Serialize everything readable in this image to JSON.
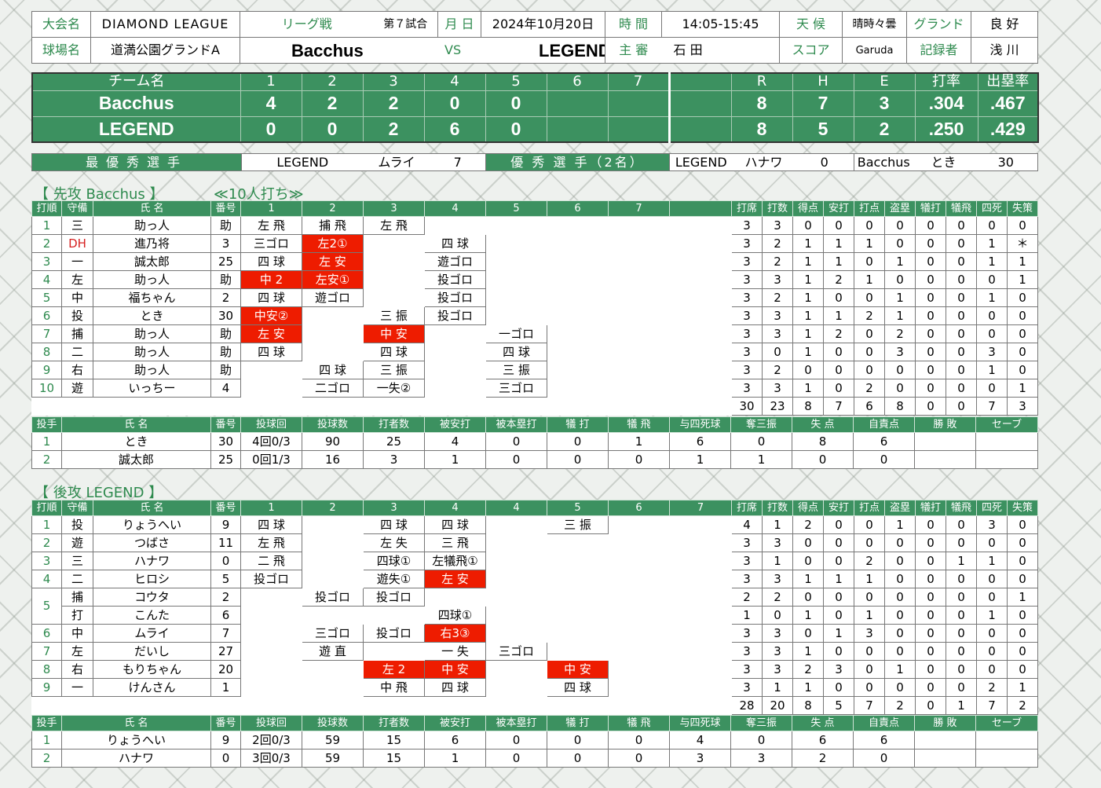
{
  "header": {
    "labels": {
      "tournament": "大会名",
      "league": "リーグ戦",
      "date": "月 日",
      "time": "時 間",
      "weather": "天 候",
      "ground": "グランド",
      "venue": "球場名",
      "vs": "VS",
      "umpire": "主 審",
      "score": "スコア",
      "recorder": "記録者"
    },
    "tournament": "DIAMOND LEAGUE",
    "game_no": "第７試合",
    "date": "2024年10月20日",
    "time": "14:05-15:45",
    "weather": "晴時々曇",
    "ground": "良 好",
    "venue": "道満公園グランドA",
    "home_team": "Bacchus",
    "away_team": "LEGEND",
    "umpire": "石 田",
    "score_keeper": "Garuda",
    "recorder": "浅 川"
  },
  "scoreboard": {
    "headers": [
      "チーム名",
      "1",
      "2",
      "3",
      "4",
      "5",
      "6",
      "7",
      "",
      "R",
      "H",
      "E",
      "打率",
      "出塁率"
    ],
    "rows": [
      [
        "Bacchus",
        "4",
        "2",
        "2",
        "0",
        "0",
        "",
        "",
        "",
        "8",
        "7",
        "3",
        ".304",
        ".467"
      ],
      [
        "LEGEND",
        "0",
        "0",
        "2",
        "6",
        "0",
        "",
        "",
        "",
        "8",
        "5",
        "2",
        ".250",
        ".429"
      ]
    ]
  },
  "mvp": {
    "label": "最優秀選手",
    "team": "LEGEND",
    "name": "ムライ",
    "no": "7",
    "label2": "優 秀 選 手（2名）",
    "p1_team": "LEGEND",
    "p1_name": "ハナワ",
    "p1_no": "0",
    "p2_team": "Bacchus",
    "p2_name": "とき",
    "p2_no": "30"
  },
  "first": {
    "title": "【 先攻 Bacchus 】",
    "note": "≪10人打ち≫",
    "headers": [
      "打順",
      "守備",
      "氏 名",
      "番号",
      "1",
      "2",
      "3",
      "4",
      "5",
      "6",
      "7",
      "",
      "打席",
      "打数",
      "得点",
      "安打",
      "打点",
      "盗塁",
      "犠打",
      "犠飛",
      "四死",
      "失策"
    ],
    "rows": [
      {
        "order": "1",
        "pos": "三",
        "name": "助っ人",
        "no": "助",
        "inn": [
          "左 飛",
          "捕 飛",
          "左 飛",
          "",
          "",
          "",
          ""
        ],
        "st": [
          "3",
          "3",
          "0",
          "0",
          "0",
          "0",
          "0",
          "0",
          "0",
          "0"
        ]
      },
      {
        "order": "2",
        "pos": "DH",
        "name": "進乃将",
        "no": "3",
        "inn": [
          "三ゴロ",
          "左2①",
          "",
          "四 球",
          "",
          "",
          ""
        ],
        "st": [
          "3",
          "2",
          "1",
          "1",
          "1",
          "0",
          "0",
          "0",
          "1",
          "＊"
        ]
      },
      {
        "order": "3",
        "pos": "一",
        "name": "誠太郎",
        "no": "25",
        "inn": [
          "四 球",
          "左 安",
          "",
          "遊ゴロ",
          "",
          "",
          ""
        ],
        "st": [
          "3",
          "2",
          "1",
          "1",
          "0",
          "1",
          "0",
          "0",
          "1",
          "1"
        ]
      },
      {
        "order": "4",
        "pos": "左",
        "name": "助っ人",
        "no": "助",
        "inn": [
          "中 2",
          "左安①",
          "",
          "投ゴロ",
          "",
          "",
          ""
        ],
        "st": [
          "3",
          "3",
          "1",
          "2",
          "1",
          "0",
          "0",
          "0",
          "0",
          "1"
        ]
      },
      {
        "order": "5",
        "pos": "中",
        "name": "福ちゃん",
        "no": "2",
        "inn": [
          "四 球",
          "遊ゴロ",
          "",
          "投ゴロ",
          "",
          "",
          ""
        ],
        "st": [
          "3",
          "2",
          "1",
          "0",
          "0",
          "1",
          "0",
          "0",
          "1",
          "0"
        ]
      },
      {
        "order": "6",
        "pos": "投",
        "name": "とき",
        "no": "30",
        "inn": [
          "中安②",
          "",
          "三 振",
          "投ゴロ",
          "",
          "",
          ""
        ],
        "st": [
          "3",
          "3",
          "1",
          "1",
          "2",
          "1",
          "0",
          "0",
          "0",
          "0"
        ]
      },
      {
        "order": "7",
        "pos": "捕",
        "name": "助っ人",
        "no": "助",
        "inn": [
          "左 安",
          "",
          "中 安",
          "",
          "一ゴロ",
          "",
          ""
        ],
        "st": [
          "3",
          "3",
          "1",
          "2",
          "0",
          "2",
          "0",
          "0",
          "0",
          "0"
        ]
      },
      {
        "order": "8",
        "pos": "二",
        "name": "助っ人",
        "no": "助",
        "inn": [
          "四 球",
          "",
          "四 球",
          "",
          "四 球",
          "",
          ""
        ],
        "st": [
          "3",
          "0",
          "1",
          "0",
          "0",
          "3",
          "0",
          "0",
          "3",
          "0"
        ]
      },
      {
        "order": "9",
        "pos": "右",
        "name": "助っ人",
        "no": "助",
        "inn": [
          "",
          "四 球",
          "三 振",
          "",
          "三 振",
          "",
          ""
        ],
        "st": [
          "3",
          "2",
          "0",
          "0",
          "0",
          "0",
          "0",
          "0",
          "1",
          "0"
        ]
      },
      {
        "order": "10",
        "pos": "遊",
        "name": "いっちー",
        "no": "4",
        "inn": [
          "",
          "二ゴロ",
          "一失②",
          "",
          "三ゴロ",
          "",
          ""
        ],
        "st": [
          "3",
          "3",
          "1",
          "0",
          "2",
          "0",
          "0",
          "0",
          "0",
          "1"
        ]
      }
    ],
    "totals": [
      "30",
      "23",
      "8",
      "7",
      "6",
      "8",
      "0",
      "0",
      "7",
      "3"
    ],
    "pitch_headers": [
      "投手",
      "氏 名",
      "番号",
      "投球回",
      "投球数",
      "打者数",
      "被安打",
      "被本塁打",
      "犠 打",
      "犠 飛",
      "与四死球",
      "奪三振",
      "失 点",
      "自責点",
      "勝 敗",
      "セーブ"
    ],
    "pitchers": [
      [
        "1",
        "とき",
        "30",
        "4回0/3",
        "90",
        "25",
        "4",
        "0",
        "0",
        "1",
        "6",
        "0",
        "8",
        "6",
        "",
        ""
      ],
      [
        "2",
        "誠太郎",
        "25",
        "0回1/3",
        "16",
        "3",
        "1",
        "0",
        "0",
        "0",
        "1",
        "1",
        "0",
        "0",
        "",
        ""
      ]
    ]
  },
  "second": {
    "title": "【 後攻 LEGEND 】",
    "headers": [
      "打順",
      "守備",
      "氏 名",
      "番号",
      "1",
      "2",
      "3",
      "4",
      "4",
      "5",
      "6",
      "7",
      "打席",
      "打数",
      "得点",
      "安打",
      "打点",
      "盗塁",
      "犠打",
      "犠飛",
      "四死",
      "失策"
    ],
    "rows": [
      {
        "order": "1",
        "pos": "投",
        "name": "りょうへい",
        "no": "9",
        "inn": [
          "四 球",
          "",
          "四 球",
          "四 球",
          "",
          "三 振",
          "",
          ""
        ],
        "st": [
          "4",
          "1",
          "2",
          "0",
          "0",
          "1",
          "0",
          "0",
          "3",
          "0"
        ]
      },
      {
        "order": "2",
        "pos": "遊",
        "name": "つばさ",
        "no": "11",
        "inn": [
          "左 飛",
          "",
          "左 失",
          "三 飛",
          "",
          "",
          "",
          ""
        ],
        "st": [
          "3",
          "3",
          "0",
          "0",
          "0",
          "0",
          "0",
          "0",
          "0",
          "0"
        ]
      },
      {
        "order": "3",
        "pos": "三",
        "name": "ハナワ",
        "no": "0",
        "inn": [
          "二 飛",
          "",
          "四球①",
          "左犠飛①",
          "",
          "",
          "",
          ""
        ],
        "st": [
          "3",
          "1",
          "0",
          "0",
          "2",
          "0",
          "0",
          "1",
          "1",
          "0"
        ]
      },
      {
        "order": "4",
        "pos": "二",
        "name": "ヒロシ",
        "no": "5",
        "inn": [
          "投ゴロ",
          "",
          "遊失①",
          "左 安",
          "",
          "",
          "",
          ""
        ],
        "st": [
          "3",
          "3",
          "1",
          "1",
          "1",
          "0",
          "0",
          "0",
          "0",
          "0"
        ]
      },
      {
        "order": "5",
        "pos": "捕",
        "name": "コウタ",
        "no": "2",
        "inn": [
          "",
          "投ゴロ",
          "投ゴロ",
          "",
          "",
          "",
          "",
          ""
        ],
        "st": [
          "2",
          "2",
          "0",
          "0",
          "0",
          "0",
          "0",
          "0",
          "0",
          "1"
        ]
      },
      {
        "order": "",
        "pos": "打",
        "name": "こんた",
        "no": "6",
        "inn": [
          "",
          "",
          "",
          "四球①",
          "",
          "",
          "",
          ""
        ],
        "st": [
          "1",
          "0",
          "1",
          "0",
          "1",
          "0",
          "0",
          "0",
          "1",
          "0"
        ]
      },
      {
        "order": "6",
        "pos": "中",
        "name": "ムライ",
        "no": "7",
        "inn": [
          "",
          "三ゴロ",
          "投ゴロ",
          "右3③",
          "",
          "",
          "",
          ""
        ],
        "st": [
          "3",
          "3",
          "0",
          "1",
          "3",
          "0",
          "0",
          "0",
          "0",
          "0"
        ]
      },
      {
        "order": "7",
        "pos": "左",
        "name": "だいし",
        "no": "27",
        "inn": [
          "",
          "遊 直",
          "",
          "一 失",
          "三ゴロ",
          "",
          "",
          ""
        ],
        "st": [
          "3",
          "3",
          "1",
          "0",
          "0",
          "0",
          "0",
          "0",
          "0",
          "0"
        ]
      },
      {
        "order": "8",
        "pos": "右",
        "name": "もりちゃん",
        "no": "20",
        "inn": [
          "",
          "",
          "左 2",
          "中 安",
          "",
          "中 安",
          "",
          ""
        ],
        "st": [
          "3",
          "3",
          "2",
          "3",
          "0",
          "1",
          "0",
          "0",
          "0",
          "0"
        ]
      },
      {
        "order": "9",
        "pos": "一",
        "name": "けんさん",
        "no": "1",
        "inn": [
          "",
          "",
          "中 飛",
          "四 球",
          "",
          "四 球",
          "",
          ""
        ],
        "st": [
          "3",
          "1",
          "1",
          "0",
          "0",
          "0",
          "0",
          "0",
          "2",
          "1"
        ]
      }
    ],
    "totals": [
      "28",
      "20",
      "8",
      "5",
      "7",
      "2",
      "0",
      "1",
      "7",
      "2"
    ],
    "pitchers": [
      [
        "1",
        "りょうへい",
        "9",
        "2回0/3",
        "59",
        "15",
        "6",
        "0",
        "0",
        "0",
        "4",
        "0",
        "6",
        "6",
        "",
        ""
      ],
      [
        "2",
        "ハナワ",
        "0",
        "3回0/3",
        "59",
        "15",
        "1",
        "0",
        "0",
        "0",
        "3",
        "3",
        "2",
        "0",
        "",
        ""
      ]
    ]
  },
  "red_cells": {
    "first": [
      [
        1,
        1
      ],
      [
        2,
        1
      ],
      [
        3,
        0
      ],
      [
        3,
        1
      ],
      [
        5,
        0
      ],
      [
        6,
        0
      ],
      [
        6,
        2
      ]
    ],
    "second": [
      [
        3,
        3
      ],
      [
        6,
        3
      ],
      [
        8,
        2
      ],
      [
        8,
        3
      ],
      [
        8,
        5
      ]
    ]
  },
  "colors": {
    "header_green": "#3c9160",
    "hit_red": "#ee1c00",
    "label_green": "#2e8a4e"
  }
}
